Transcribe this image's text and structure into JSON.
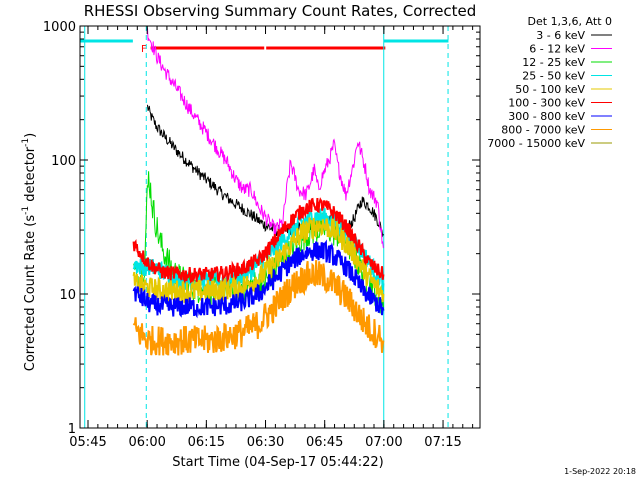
{
  "chart_data": {
    "type": "line",
    "title": "RHESSI Observing Summary Count Rates, Corrected",
    "xlabel": "Start Time (04-Sep-17 05:44:22)",
    "ylabel_parts": [
      "Corrected Count Rate (s",
      "-1",
      " detector",
      "-1",
      ")"
    ],
    "y_scale": "log",
    "ylim": [
      1,
      1000
    ],
    "xlim": [
      -1.4,
      100
    ],
    "x_unit": "minutes after 05:44:22",
    "y_ticks": [
      {
        "value": 1,
        "label": "1"
      },
      {
        "value": 10,
        "label": "10"
      },
      {
        "value": 100,
        "label": "100"
      },
      {
        "value": 1000,
        "label": "1000"
      }
    ],
    "x_ticks": [
      {
        "value": 0.63,
        "label": "05:45"
      },
      {
        "value": 15.63,
        "label": "06:00"
      },
      {
        "value": 30.63,
        "label": "06:15"
      },
      {
        "value": 45.63,
        "label": "06:30"
      },
      {
        "value": 60.63,
        "label": "06:45"
      },
      {
        "value": 75.63,
        "label": "07:00"
      },
      {
        "value": 90.63,
        "label": "07:15"
      }
    ],
    "legend_header": "Det 1,3,6, Att 0",
    "legend_position": "right",
    "series": [
      {
        "name": "3 - 6 keV",
        "color": "#000000",
        "x": [
          15.7,
          16.5,
          18,
          20,
          22,
          24,
          26,
          28,
          30,
          32,
          34,
          36,
          38,
          40,
          42,
          44,
          46,
          48,
          50,
          52,
          54,
          56,
          58,
          60,
          62,
          64,
          66,
          68,
          70,
          72,
          74,
          75.5
        ],
        "y": [
          250,
          215,
          178,
          150,
          128,
          110,
          96,
          84,
          74,
          66,
          58,
          52,
          47,
          43,
          39,
          35,
          32,
          30,
          29,
          30,
          31,
          33,
          33,
          34,
          35,
          33,
          30,
          36,
          50,
          45,
          36,
          28
        ]
      },
      {
        "name": "6 - 12 keV",
        "color": "#ff00ff",
        "x": [
          15.7,
          16.5,
          18,
          20,
          22,
          24,
          26,
          28,
          30,
          32,
          34,
          36,
          38,
          40,
          42,
          44,
          46,
          48,
          50,
          51,
          52,
          54,
          56,
          58,
          59,
          60,
          62,
          63,
          64,
          66,
          68,
          69,
          70,
          71,
          72,
          74,
          75.5
        ],
        "y": [
          900,
          780,
          600,
          470,
          380,
          310,
          250,
          205,
          170,
          140,
          115,
          95,
          72,
          60,
          60,
          44,
          36,
          30,
          34,
          60,
          95,
          60,
          55,
          85,
          60,
          75,
          105,
          130,
          90,
          55,
          95,
          140,
          110,
          85,
          60,
          48,
          22
        ]
      },
      {
        "name": "12 - 25 keV",
        "color": "#00dd00",
        "x": [
          12.2,
          13,
          14,
          15,
          15.5,
          16,
          16.5,
          17,
          18,
          19,
          20,
          22,
          24,
          26,
          28,
          30,
          32,
          34,
          36,
          38,
          40,
          42,
          44,
          46,
          48,
          50,
          52,
          54,
          56,
          58,
          60,
          62,
          64,
          66,
          68,
          70,
          72,
          74,
          75.5
        ],
        "y": [
          15,
          13,
          14,
          17,
          45,
          75,
          60,
          45,
          32,
          24,
          20,
          15,
          13,
          12,
          11,
          11,
          10.5,
          10.5,
          11,
          11,
          11,
          11.5,
          12,
          13,
          15,
          18,
          21,
          25,
          28,
          30,
          31,
          30,
          28,
          25,
          20,
          15,
          12,
          10,
          8
        ]
      },
      {
        "name": "25 - 50 keV",
        "color": "#00e5e5",
        "x": [
          12.2,
          14,
          16,
          18,
          20,
          22,
          24,
          26,
          28,
          30,
          32,
          34,
          36,
          38,
          40,
          42,
          44,
          46,
          48,
          50,
          52,
          54,
          56,
          58,
          60,
          62,
          64,
          66,
          68,
          70,
          72,
          74,
          75.5
        ],
        "y": [
          17,
          16,
          16,
          15.5,
          14.5,
          13.5,
          13,
          12.5,
          12.5,
          12.5,
          12.5,
          12.5,
          13,
          13.5,
          14,
          15,
          17,
          19,
          22,
          25,
          29,
          33,
          36,
          38,
          38,
          36,
          33,
          29,
          25,
          21,
          17,
          14,
          12
        ]
      },
      {
        "name": "50 - 100 keV",
        "color": "#e5c800",
        "x": [
          12.2,
          14,
          16,
          20,
          24,
          28,
          32,
          36,
          40,
          44,
          46,
          48,
          50,
          52,
          54,
          56,
          58,
          60,
          62,
          64,
          66,
          68,
          70,
          72,
          74,
          75.5
        ],
        "y": [
          12,
          11.5,
          11,
          10.5,
          10.5,
          10.5,
          10.5,
          11,
          11.5,
          13,
          15,
          17,
          20,
          23,
          27,
          30,
          32,
          33,
          31,
          28,
          24,
          20,
          16,
          13,
          11,
          10
        ]
      },
      {
        "name": "100 - 300 keV",
        "color": "#ff0000",
        "x": [
          12.2,
          14,
          16,
          18,
          20,
          24,
          28,
          32,
          36,
          40,
          44,
          46,
          48,
          50,
          52,
          54,
          56,
          58,
          60,
          62,
          64,
          66,
          68,
          70,
          72,
          74,
          75.5
        ],
        "y": [
          24,
          20,
          17,
          15.5,
          14.5,
          14,
          14,
          14,
          14.5,
          15.5,
          18,
          21,
          25,
          30,
          35,
          40,
          44,
          46,
          46,
          43,
          38,
          32,
          26,
          21,
          17,
          15,
          14
        ]
      },
      {
        "name": "300 - 800 keV",
        "color": "#0000ff",
        "x": [
          12.2,
          14,
          16,
          20,
          24,
          28,
          32,
          36,
          40,
          44,
          46,
          48,
          50,
          52,
          54,
          56,
          58,
          60,
          62,
          64,
          66,
          68,
          70,
          72,
          74,
          75.5
        ],
        "y": [
          10.5,
          9.5,
          8.5,
          8,
          8,
          8,
          8,
          8.2,
          8.8,
          10,
          11.5,
          13,
          15,
          17,
          19,
          20.5,
          21,
          21,
          20,
          18,
          16,
          13.5,
          11,
          9.5,
          8.5,
          7.5
        ]
      },
      {
        "name": "800 - 7000 keV",
        "color": "#ff9900",
        "x": [
          12.2,
          14,
          16,
          20,
          24,
          28,
          32,
          36,
          40,
          44,
          46,
          48,
          50,
          52,
          54,
          56,
          58,
          60,
          62,
          64,
          66,
          68,
          70,
          72,
          74,
          75.5
        ],
        "y": [
          5.5,
          5,
          4.5,
          4.5,
          4.5,
          4.5,
          4.5,
          4.8,
          5.2,
          6,
          7,
          8,
          9.5,
          11,
          12.5,
          13.5,
          14,
          13.5,
          12.5,
          11,
          9.5,
          8,
          6.5,
          5.5,
          5,
          4.5
        ]
      },
      {
        "name": "7000 - 15000 keV",
        "color": "#999900",
        "x": [],
        "y": []
      }
    ],
    "overlays": {
      "cyan_intervals": [
        [
          -1.4,
          12.0
        ],
        [
          75.6,
          92.0
        ]
      ],
      "red_flag_intervals": [
        [
          16.5,
          45.3
        ],
        [
          45.8,
          76.0
        ]
      ],
      "flag_label": "F",
      "flag_label_x": 14.8,
      "solid_cyan_lines": [
        -0.2,
        75.6
      ],
      "dashed_cyan_lines": [
        15.4,
        91.9
      ]
    }
  },
  "footer": {
    "date": "1-Sep-2022 20:18"
  }
}
